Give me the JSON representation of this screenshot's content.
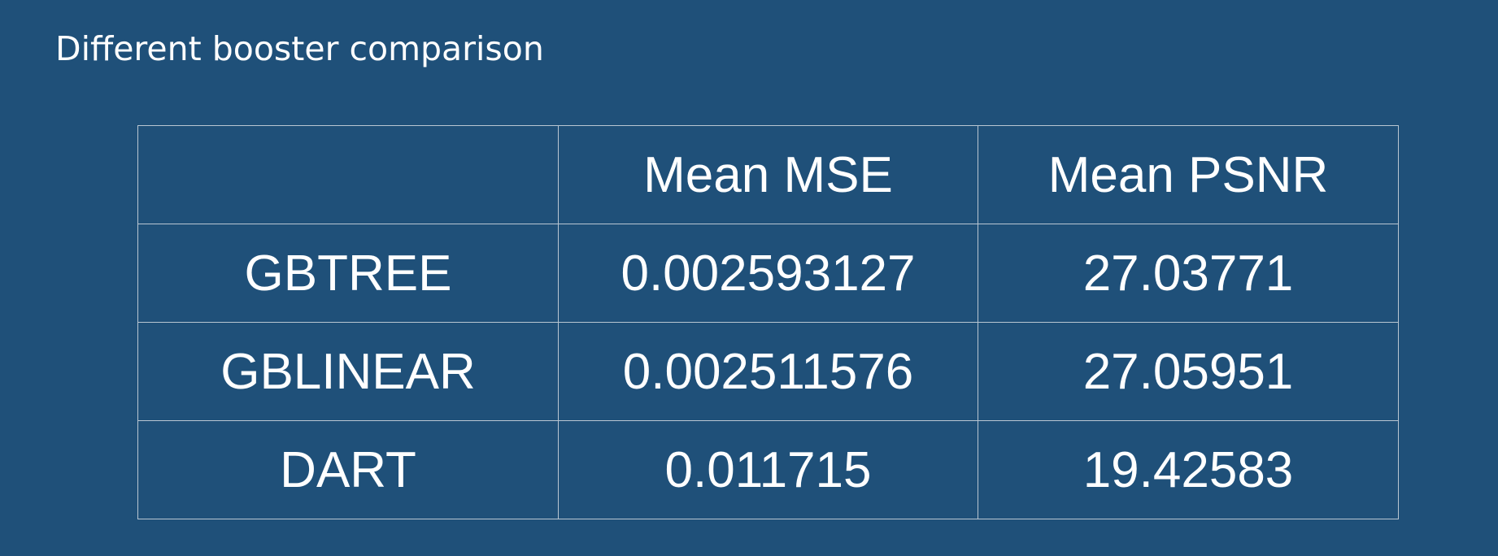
{
  "title": "Different booster comparison",
  "table": {
    "headers": [
      "",
      "Mean MSE",
      "Mean PSNR"
    ],
    "rows": [
      [
        "GBTREE",
        "0.002593127",
        "27.03771"
      ],
      [
        "GBLINEAR",
        "0.002511576",
        "27.05951"
      ],
      [
        "DART",
        "0.011715",
        "19.42583"
      ]
    ]
  },
  "colors": {
    "background": "#1f5079",
    "text": "#ffffff",
    "grid": "#b9c6d2"
  }
}
